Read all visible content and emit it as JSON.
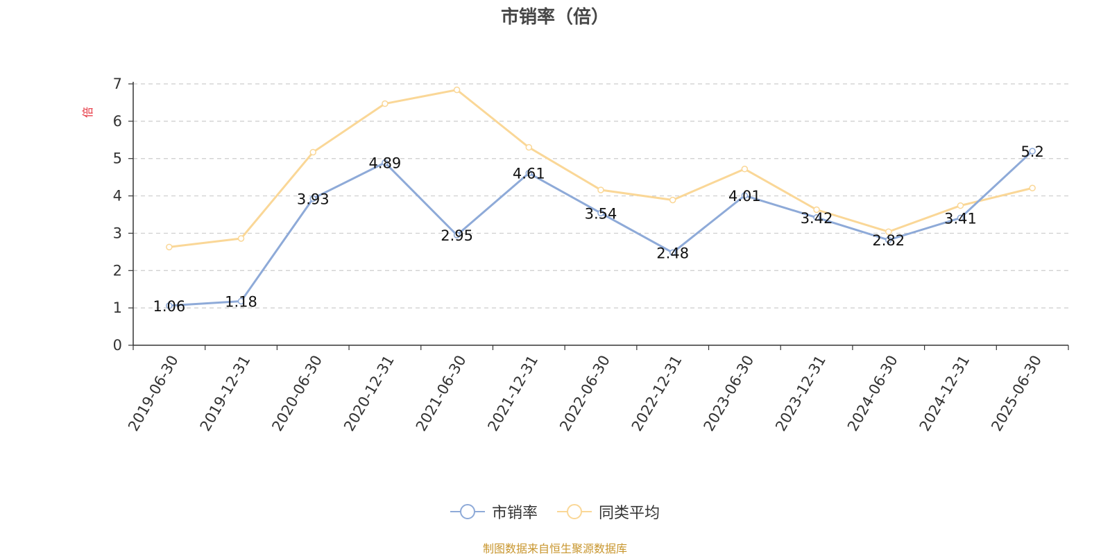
{
  "chart_data": {
    "type": "line",
    "title": "市销率（倍）",
    "ylabel": "倍",
    "xlabel": "",
    "ylim": [
      0,
      7
    ],
    "yticks": [
      0,
      1,
      2,
      3,
      4,
      5,
      6,
      7
    ],
    "grid": true,
    "legend_position": "bottom",
    "categories": [
      "2019-06-30",
      "2019-12-31",
      "2020-06-30",
      "2020-12-31",
      "2021-06-30",
      "2021-12-31",
      "2022-06-30",
      "2022-12-31",
      "2023-06-30",
      "2023-12-31",
      "2024-06-30",
      "2024-12-31",
      "2025-06-30"
    ],
    "series": [
      {
        "name": "市销率",
        "color": "#8eaad8",
        "values": [
          1.06,
          1.18,
          3.93,
          4.89,
          2.95,
          4.61,
          3.54,
          2.48,
          4.01,
          3.42,
          2.82,
          3.41,
          5.2
        ],
        "data_labels": [
          "1.06",
          "1.18",
          "3.93",
          "4.89",
          "2.95",
          "4.61",
          "3.54",
          "2.48",
          "4.01",
          "3.42",
          "2.82",
          "3.41",
          "5.2"
        ]
      },
      {
        "name": "同类平均",
        "color": "#fad797",
        "values": [
          2.63,
          2.86,
          5.17,
          6.47,
          6.84,
          5.3,
          4.16,
          3.89,
          4.72,
          3.63,
          3.04,
          3.74,
          4.21
        ]
      }
    ]
  },
  "footer": {
    "source": "制图数据来自恒生聚源数据库"
  }
}
